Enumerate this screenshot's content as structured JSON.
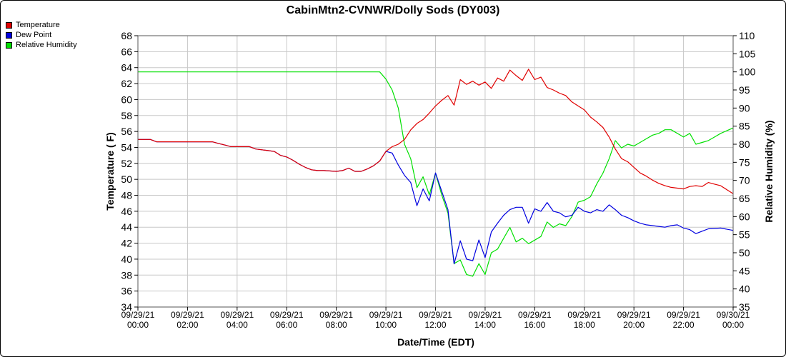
{
  "chart_data": {
    "type": "line",
    "title": "CabinMtn2-CVNWR/Dolly Sods (DY003)",
    "xlabel": "Date/Time (EDT)",
    "ylabel_left": "Temperature ( F)",
    "ylabel_right": "Relative Humidity (%)",
    "ylim_left": [
      34,
      68
    ],
    "ylim_right": [
      35,
      110
    ],
    "yticks_left": [
      34,
      36,
      38,
      40,
      42,
      44,
      46,
      48,
      50,
      52,
      54,
      56,
      58,
      60,
      62,
      64,
      66,
      68
    ],
    "yticks_right": [
      35,
      40,
      45,
      50,
      55,
      60,
      65,
      70,
      75,
      80,
      85,
      90,
      95,
      100,
      105,
      110
    ],
    "xlim_hours": [
      0,
      24
    ],
    "xticks": [
      {
        "h": 0,
        "date": "09/29/21",
        "time": "00:00"
      },
      {
        "h": 2,
        "date": "09/29/21",
        "time": "02:00"
      },
      {
        "h": 4,
        "date": "09/29/21",
        "time": "04:00"
      },
      {
        "h": 6,
        "date": "09/29/21",
        "time": "06:00"
      },
      {
        "h": 8,
        "date": "09/29/21",
        "time": "08:00"
      },
      {
        "h": 10,
        "date": "09/29/21",
        "time": "10:00"
      },
      {
        "h": 12,
        "date": "09/29/21",
        "time": "12:00"
      },
      {
        "h": 14,
        "date": "09/29/21",
        "time": "14:00"
      },
      {
        "h": 16,
        "date": "09/29/21",
        "time": "16:00"
      },
      {
        "h": 18,
        "date": "09/29/21",
        "time": "18:00"
      },
      {
        "h": 20,
        "date": "09/29/21",
        "time": "20:00"
      },
      {
        "h": 22,
        "date": "09/29/21",
        "time": "22:00"
      },
      {
        "h": 24,
        "date": "09/30/21",
        "time": "00:00"
      }
    ],
    "grid": true,
    "legend_position": "top-left",
    "series": [
      {
        "name": "Temperature",
        "color": "#e00000",
        "axis": "left",
        "points": [
          [
            0,
            55
          ],
          [
            0.5,
            55
          ],
          [
            0.75,
            54.7
          ],
          [
            1,
            54.7
          ],
          [
            2,
            54.7
          ],
          [
            3,
            54.7
          ],
          [
            3.25,
            54.5
          ],
          [
            3.5,
            54.3
          ],
          [
            3.75,
            54.1
          ],
          [
            4,
            54.1
          ],
          [
            4.5,
            54.1
          ],
          [
            4.75,
            53.8
          ],
          [
            5,
            53.7
          ],
          [
            5.25,
            53.6
          ],
          [
            5.5,
            53.5
          ],
          [
            5.75,
            53
          ],
          [
            6,
            52.8
          ],
          [
            6.25,
            52.4
          ],
          [
            6.5,
            51.9
          ],
          [
            6.75,
            51.5
          ],
          [
            7,
            51.2
          ],
          [
            7.25,
            51.1
          ],
          [
            7.5,
            51.1
          ],
          [
            8,
            51
          ],
          [
            8.25,
            51.1
          ],
          [
            8.5,
            51.4
          ],
          [
            8.75,
            51
          ],
          [
            9,
            51
          ],
          [
            9.25,
            51.3
          ],
          [
            9.5,
            51.7
          ],
          [
            9.75,
            52.3
          ],
          [
            10,
            53.5
          ],
          [
            10.25,
            54.1
          ],
          [
            10.5,
            54.4
          ],
          [
            10.75,
            55
          ],
          [
            11,
            56.2
          ],
          [
            11.25,
            57
          ],
          [
            11.5,
            57.5
          ],
          [
            11.75,
            58.3
          ],
          [
            12,
            59.2
          ],
          [
            12.25,
            59.9
          ],
          [
            12.5,
            60.5
          ],
          [
            12.75,
            59.3
          ],
          [
            13,
            62.5
          ],
          [
            13.25,
            61.9
          ],
          [
            13.5,
            62.3
          ],
          [
            13.75,
            61.8
          ],
          [
            14,
            62.2
          ],
          [
            14.25,
            61.4
          ],
          [
            14.5,
            62.7
          ],
          [
            14.75,
            62.3
          ],
          [
            15,
            63.7
          ],
          [
            15.25,
            63
          ],
          [
            15.5,
            62.4
          ],
          [
            15.75,
            63.8
          ],
          [
            16,
            62.5
          ],
          [
            16.25,
            62.8
          ],
          [
            16.5,
            61.5
          ],
          [
            16.75,
            61.2
          ],
          [
            17,
            60.8
          ],
          [
            17.25,
            60.5
          ],
          [
            17.5,
            59.7
          ],
          [
            17.75,
            59.2
          ],
          [
            18,
            58.7
          ],
          [
            18.25,
            57.8
          ],
          [
            18.5,
            57.2
          ],
          [
            18.75,
            56.5
          ],
          [
            19,
            55.3
          ],
          [
            19.25,
            53.8
          ],
          [
            19.5,
            52.6
          ],
          [
            19.75,
            52.2
          ],
          [
            20,
            51.5
          ],
          [
            20.25,
            50.8
          ],
          [
            20.5,
            50.4
          ],
          [
            20.75,
            49.9
          ],
          [
            21,
            49.5
          ],
          [
            21.25,
            49.2
          ],
          [
            21.5,
            49
          ],
          [
            22,
            48.8
          ],
          [
            22.25,
            49.1
          ],
          [
            22.5,
            49.2
          ],
          [
            22.75,
            49.1
          ],
          [
            23,
            49.6
          ],
          [
            23.25,
            49.4
          ],
          [
            23.5,
            49.2
          ],
          [
            23.75,
            48.7
          ],
          [
            24,
            48.2
          ]
        ]
      },
      {
        "name": "Dew Point",
        "color": "#0000e0",
        "axis": "left",
        "points": [
          [
            0,
            55
          ],
          [
            0.5,
            55
          ],
          [
            0.75,
            54.7
          ],
          [
            1,
            54.7
          ],
          [
            2,
            54.7
          ],
          [
            3,
            54.7
          ],
          [
            3.25,
            54.5
          ],
          [
            3.5,
            54.3
          ],
          [
            3.75,
            54.1
          ],
          [
            4,
            54.1
          ],
          [
            4.5,
            54.1
          ],
          [
            4.75,
            53.8
          ],
          [
            5,
            53.7
          ],
          [
            5.25,
            53.6
          ],
          [
            5.5,
            53.5
          ],
          [
            5.75,
            53
          ],
          [
            6,
            52.8
          ],
          [
            6.25,
            52.4
          ],
          [
            6.5,
            51.9
          ],
          [
            6.75,
            51.5
          ],
          [
            7,
            51.2
          ],
          [
            7.25,
            51.1
          ],
          [
            7.5,
            51.1
          ],
          [
            8,
            51
          ],
          [
            8.25,
            51.1
          ],
          [
            8.5,
            51.4
          ],
          [
            8.75,
            51
          ],
          [
            9,
            51
          ],
          [
            9.25,
            51.3
          ],
          [
            9.5,
            51.7
          ],
          [
            9.75,
            52.3
          ],
          [
            10,
            53.5
          ],
          [
            10.25,
            53.3
          ],
          [
            10.5,
            51.8
          ],
          [
            10.75,
            50.5
          ],
          [
            11,
            49.6
          ],
          [
            11.25,
            46.7
          ],
          [
            11.5,
            48.8
          ],
          [
            11.75,
            47.3
          ],
          [
            12,
            50.8
          ],
          [
            12.25,
            48.5
          ],
          [
            12.5,
            46.2
          ],
          [
            12.75,
            39.4
          ],
          [
            13,
            42.3
          ],
          [
            13.25,
            40
          ],
          [
            13.5,
            39.8
          ],
          [
            13.75,
            42.4
          ],
          [
            14,
            40.2
          ],
          [
            14.25,
            43.4
          ],
          [
            14.5,
            44.5
          ],
          [
            14.75,
            45.5
          ],
          [
            15,
            46.2
          ],
          [
            15.25,
            46.5
          ],
          [
            15.5,
            46.5
          ],
          [
            15.75,
            44.5
          ],
          [
            16,
            46.3
          ],
          [
            16.25,
            46
          ],
          [
            16.5,
            47.1
          ],
          [
            16.75,
            46
          ],
          [
            17,
            45.8
          ],
          [
            17.25,
            45.3
          ],
          [
            17.5,
            45.5
          ],
          [
            17.75,
            46.5
          ],
          [
            18,
            46
          ],
          [
            18.25,
            45.8
          ],
          [
            18.5,
            46.2
          ],
          [
            18.75,
            46
          ],
          [
            19,
            46.8
          ],
          [
            19.25,
            46.2
          ],
          [
            19.5,
            45.5
          ],
          [
            19.75,
            45.2
          ],
          [
            20,
            44.8
          ],
          [
            20.25,
            44.5
          ],
          [
            20.5,
            44.3
          ],
          [
            21,
            44.1
          ],
          [
            21.25,
            44
          ],
          [
            21.5,
            44.2
          ],
          [
            21.75,
            44.3
          ],
          [
            22,
            43.9
          ],
          [
            22.25,
            43.7
          ],
          [
            22.5,
            43.2
          ],
          [
            22.75,
            43.5
          ],
          [
            23,
            43.8
          ],
          [
            23.5,
            43.9
          ],
          [
            24,
            43.6
          ]
        ]
      },
      {
        "name": "Relative Humidity",
        "color": "#00e000",
        "axis": "right",
        "points": [
          [
            0,
            100
          ],
          [
            9.75,
            100
          ],
          [
            10,
            98
          ],
          [
            10.25,
            95
          ],
          [
            10.5,
            90
          ],
          [
            10.75,
            80
          ],
          [
            11,
            76
          ],
          [
            11.25,
            68
          ],
          [
            11.5,
            71
          ],
          [
            11.75,
            66
          ],
          [
            12,
            72
          ],
          [
            12.25,
            66
          ],
          [
            12.5,
            61
          ],
          [
            12.75,
            47
          ],
          [
            13,
            48
          ],
          [
            13.25,
            44
          ],
          [
            13.5,
            43.5
          ],
          [
            13.75,
            47
          ],
          [
            14,
            44
          ],
          [
            14.25,
            50
          ],
          [
            14.5,
            51
          ],
          [
            14.75,
            54
          ],
          [
            15,
            57
          ],
          [
            15.25,
            53
          ],
          [
            15.5,
            54
          ],
          [
            15.75,
            52.5
          ],
          [
            16,
            53.5
          ],
          [
            16.25,
            54.5
          ],
          [
            16.5,
            58.5
          ],
          [
            16.75,
            57
          ],
          [
            17,
            58
          ],
          [
            17.25,
            57.5
          ],
          [
            17.5,
            60
          ],
          [
            17.75,
            64
          ],
          [
            18,
            64.5
          ],
          [
            18.25,
            65.5
          ],
          [
            18.5,
            69
          ],
          [
            18.75,
            72
          ],
          [
            19,
            76
          ],
          [
            19.25,
            81
          ],
          [
            19.5,
            79
          ],
          [
            19.75,
            80
          ],
          [
            20,
            79.5
          ],
          [
            20.25,
            80.5
          ],
          [
            20.5,
            81.5
          ],
          [
            20.75,
            82.5
          ],
          [
            21,
            83
          ],
          [
            21.25,
            84
          ],
          [
            21.5,
            84
          ],
          [
            22,
            82
          ],
          [
            22.25,
            83
          ],
          [
            22.5,
            80
          ],
          [
            22.75,
            80.5
          ],
          [
            23,
            81
          ],
          [
            23.25,
            82
          ],
          [
            23.5,
            83
          ],
          [
            24,
            84.5
          ]
        ]
      }
    ]
  }
}
